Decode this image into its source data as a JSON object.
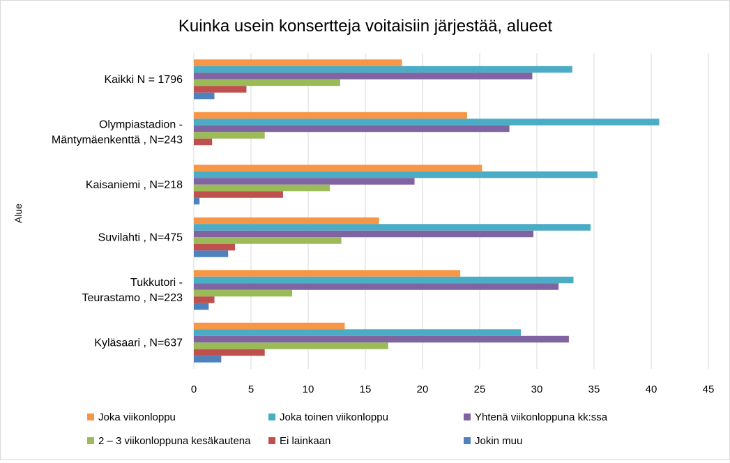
{
  "chart_data": {
    "type": "bar",
    "orientation": "horizontal",
    "title": "Kuinka usein konsertteja voitaisiin järjestää, alueet",
    "ylabel": "Alue",
    "xlabel": "",
    "xlim": [
      0,
      45
    ],
    "xticks": [
      "0",
      "5",
      "10",
      "15",
      "20",
      "25",
      "30",
      "35",
      "40",
      "45"
    ],
    "xtick_values": [
      0,
      5,
      10,
      15,
      20,
      25,
      30,
      35,
      40,
      45
    ],
    "grid": "vertical",
    "legend_position": "bottom",
    "categories": [
      [
        "Kaikki N = 1796"
      ],
      [
        "Olympiastadion -",
        "Mäntymäenkenttä , N=243"
      ],
      [
        "Kaisaniemi , N=218"
      ],
      [
        "Suvilahti , N=475"
      ],
      [
        "Tukkutori -",
        "Teurastamo , N=223"
      ],
      [
        "Kyläsaari , N=637"
      ]
    ],
    "series": [
      {
        "name": "Joka viikonloppu",
        "color": "#f79646",
        "values": [
          18.2,
          23.9,
          25.2,
          16.2,
          23.3,
          13.2
        ]
      },
      {
        "name": "Joka toinen viikonloppu",
        "color": "#4bacc6",
        "values": [
          33.1,
          40.7,
          35.3,
          34.7,
          33.2,
          28.6
        ]
      },
      {
        "name": "Yhtenä viikonloppuna kk:ssa",
        "color": "#8064a2",
        "values": [
          29.6,
          27.6,
          19.3,
          29.7,
          31.9,
          32.8
        ]
      },
      {
        "name": "2 – 3 viikonloppuna kesäkautena",
        "color": "#9bbb59",
        "values": [
          12.8,
          6.2,
          11.9,
          12.9,
          8.6,
          17.0
        ]
      },
      {
        "name": "Ei lainkaan",
        "color": "#c0504d",
        "values": [
          4.6,
          1.6,
          7.8,
          3.6,
          1.8,
          6.2
        ]
      },
      {
        "name": "Jokin muu",
        "color": "#4f81bd",
        "values": [
          1.8,
          0,
          0.5,
          3.0,
          1.3,
          2.4
        ]
      }
    ]
  }
}
